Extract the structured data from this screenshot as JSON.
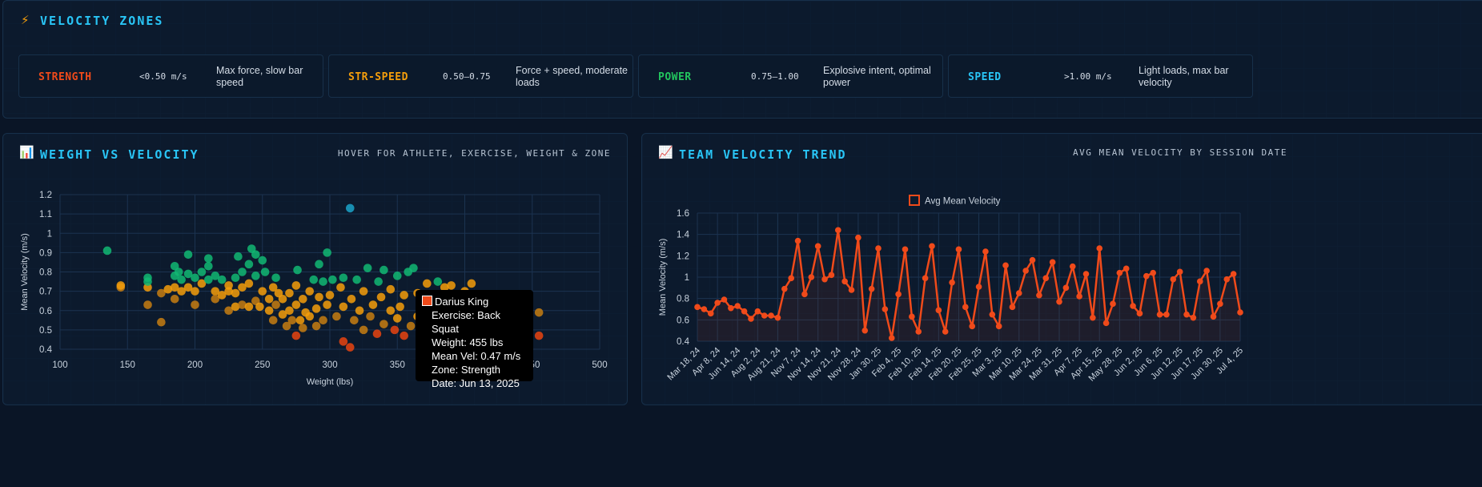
{
  "zones_panel": {
    "title": "VELOCITY ZONES",
    "icon": "lightning-icon",
    "zones": [
      {
        "name": "STRENGTH",
        "range": "<0.50 m/s",
        "desc": "Max force, slow bar speed",
        "color": "#f04a1a"
      },
      {
        "name": "STR-SPEED",
        "range": "0.50–0.75",
        "desc": "Force + speed, moderate loads",
        "color": "#f59e0b"
      },
      {
        "name": "POWER",
        "range": "0.75–1.00",
        "desc": "Explosive intent, optimal power",
        "color": "#22c55e"
      },
      {
        "name": "SPEED",
        "range": ">1.00 m/s",
        "desc": "Light loads, max bar velocity",
        "color": "#29c5f6"
      }
    ]
  },
  "scatter_panel": {
    "title": "WEIGHT VS VELOCITY",
    "subtitle": "HOVER FOR ATHLETE, EXERCISE, WEIGHT & ZONE",
    "icon": "bar-chart-icon",
    "tooltip": {
      "athlete": "Darius King",
      "exercise": "Exercise: Back Squat",
      "weight": "Weight: 455 lbs",
      "mean_vel": "Mean Vel: 0.47 m/s",
      "zone": "Zone: Strength",
      "date": "Date: Jun 13, 2025",
      "swatch": "#f04a1a"
    }
  },
  "trend_panel": {
    "title": "TEAM VELOCITY TREND",
    "subtitle": "AVG MEAN VELOCITY BY SESSION DATE",
    "icon": "line-chart-icon"
  },
  "chart_data": [
    {
      "type": "scatter",
      "xlabel": "Weight (lbs)",
      "ylabel": "Mean Velocity (m/s)",
      "xlim": [
        100,
        500
      ],
      "ylim": [
        0.4,
        1.2
      ],
      "xticks": [
        100,
        150,
        200,
        250,
        300,
        350,
        400,
        450,
        500
      ],
      "yticks": [
        0.4,
        0.5,
        0.6,
        0.7,
        0.8,
        0.9,
        1.0,
        1.1,
        1.2
      ],
      "grid": true,
      "colors": {
        "speed": "#1ba3c9",
        "power": "#12b873",
        "str_speed": "#f59e0b",
        "strength": "#e94410",
        "dark": "#c77e12"
      },
      "points": [
        [
          135,
          0.91,
          "power"
        ],
        [
          145,
          0.72,
          "dark"
        ],
        [
          145,
          0.73,
          "str_speed"
        ],
        [
          165,
          0.63,
          "dark"
        ],
        [
          165,
          0.72,
          "str_speed"
        ],
        [
          165,
          0.77,
          "power"
        ],
        [
          165,
          0.75,
          "power"
        ],
        [
          175,
          0.54,
          "dark"
        ],
        [
          175,
          0.69,
          "dark"
        ],
        [
          180,
          0.71,
          "str_speed"
        ],
        [
          185,
          0.66,
          "dark"
        ],
        [
          185,
          0.72,
          "str_speed"
        ],
        [
          185,
          0.78,
          "power"
        ],
        [
          185,
          0.83,
          "power"
        ],
        [
          188,
          0.8,
          "power"
        ],
        [
          190,
          0.7,
          "str_speed"
        ],
        [
          190,
          0.76,
          "power"
        ],
        [
          195,
          0.72,
          "str_speed"
        ],
        [
          195,
          0.79,
          "power"
        ],
        [
          195,
          0.89,
          "power"
        ],
        [
          200,
          0.63,
          "dark"
        ],
        [
          200,
          0.7,
          "str_speed"
        ],
        [
          200,
          0.77,
          "power"
        ],
        [
          205,
          0.74,
          "str_speed"
        ],
        [
          205,
          0.8,
          "power"
        ],
        [
          210,
          0.83,
          "power"
        ],
        [
          210,
          0.87,
          "power"
        ],
        [
          210,
          0.76,
          "power"
        ],
        [
          215,
          0.7,
          "str_speed"
        ],
        [
          215,
          0.66,
          "dark"
        ],
        [
          215,
          0.78,
          "power"
        ],
        [
          220,
          0.76,
          "power"
        ],
        [
          220,
          0.68,
          "str_speed"
        ],
        [
          225,
          0.6,
          "dark"
        ],
        [
          225,
          0.7,
          "str_speed"
        ],
        [
          225,
          0.73,
          "str_speed"
        ],
        [
          230,
          0.62,
          "str_speed"
        ],
        [
          230,
          0.69,
          "str_speed"
        ],
        [
          230,
          0.77,
          "power"
        ],
        [
          232,
          0.88,
          "power"
        ],
        [
          235,
          0.63,
          "dark"
        ],
        [
          235,
          0.72,
          "str_speed"
        ],
        [
          235,
          0.8,
          "power"
        ],
        [
          240,
          0.62,
          "str_speed"
        ],
        [
          240,
          0.74,
          "str_speed"
        ],
        [
          240,
          0.84,
          "power"
        ],
        [
          242,
          0.92,
          "power"
        ],
        [
          245,
          0.65,
          "dark"
        ],
        [
          245,
          0.78,
          "power"
        ],
        [
          245,
          0.89,
          "power"
        ],
        [
          248,
          0.62,
          "str_speed"
        ],
        [
          250,
          0.7,
          "str_speed"
        ],
        [
          250,
          0.86,
          "power"
        ],
        [
          252,
          0.8,
          "power"
        ],
        [
          255,
          0.6,
          "str_speed"
        ],
        [
          255,
          0.66,
          "str_speed"
        ],
        [
          258,
          0.55,
          "dark"
        ],
        [
          258,
          0.72,
          "str_speed"
        ],
        [
          260,
          0.63,
          "dark"
        ],
        [
          260,
          0.77,
          "power"
        ],
        [
          262,
          0.69,
          "str_speed"
        ],
        [
          265,
          0.58,
          "str_speed"
        ],
        [
          265,
          0.66,
          "str_speed"
        ],
        [
          268,
          0.52,
          "dark"
        ],
        [
          270,
          0.6,
          "str_speed"
        ],
        [
          270,
          0.69,
          "str_speed"
        ],
        [
          272,
          0.55,
          "dark"
        ],
        [
          275,
          0.47,
          "strength"
        ],
        [
          275,
          0.63,
          "str_speed"
        ],
        [
          275,
          0.73,
          "str_speed"
        ],
        [
          276,
          0.81,
          "power"
        ],
        [
          278,
          0.55,
          "str_speed"
        ],
        [
          280,
          0.66,
          "str_speed"
        ],
        [
          280,
          0.51,
          "dark"
        ],
        [
          282,
          0.59,
          "str_speed"
        ],
        [
          285,
          0.57,
          "str_speed"
        ],
        [
          285,
          0.7,
          "str_speed"
        ],
        [
          288,
          0.76,
          "power"
        ],
        [
          290,
          0.52,
          "dark"
        ],
        [
          290,
          0.61,
          "str_speed"
        ],
        [
          292,
          0.67,
          "str_speed"
        ],
        [
          292,
          0.84,
          "power"
        ],
        [
          295,
          0.55,
          "dark"
        ],
        [
          295,
          0.75,
          "power"
        ],
        [
          298,
          0.63,
          "str_speed"
        ],
        [
          298,
          0.9,
          "power"
        ],
        [
          300,
          0.68,
          "str_speed"
        ],
        [
          302,
          0.76,
          "power"
        ],
        [
          305,
          0.57,
          "dark"
        ],
        [
          308,
          0.72,
          "str_speed"
        ],
        [
          310,
          0.44,
          "strength"
        ],
        [
          310,
          0.62,
          "str_speed"
        ],
        [
          310,
          0.77,
          "power"
        ],
        [
          315,
          0.41,
          "strength"
        ],
        [
          315,
          1.13,
          "speed"
        ],
        [
          316,
          0.66,
          "str_speed"
        ],
        [
          318,
          0.55,
          "dark"
        ],
        [
          320,
          0.76,
          "power"
        ],
        [
          322,
          0.6,
          "str_speed"
        ],
        [
          325,
          0.5,
          "dark"
        ],
        [
          325,
          0.7,
          "str_speed"
        ],
        [
          328,
          0.82,
          "power"
        ],
        [
          330,
          0.57,
          "dark"
        ],
        [
          332,
          0.63,
          "str_speed"
        ],
        [
          335,
          0.48,
          "strength"
        ],
        [
          336,
          0.75,
          "power"
        ],
        [
          338,
          0.67,
          "str_speed"
        ],
        [
          340,
          0.53,
          "dark"
        ],
        [
          340,
          0.81,
          "power"
        ],
        [
          345,
          0.6,
          "str_speed"
        ],
        [
          345,
          0.71,
          "str_speed"
        ],
        [
          348,
          0.5,
          "strength"
        ],
        [
          350,
          0.56,
          "str_speed"
        ],
        [
          350,
          0.78,
          "power"
        ],
        [
          352,
          0.62,
          "str_speed"
        ],
        [
          355,
          0.47,
          "strength"
        ],
        [
          355,
          0.68,
          "str_speed"
        ],
        [
          358,
          0.8,
          "power"
        ],
        [
          360,
          0.52,
          "dark"
        ],
        [
          362,
          0.82,
          "power"
        ],
        [
          365,
          0.57,
          "str_speed"
        ],
        [
          365,
          0.69,
          "str_speed"
        ],
        [
          370,
          0.61,
          "str_speed"
        ],
        [
          372,
          0.74,
          "str_speed"
        ],
        [
          375,
          0.66,
          "str_speed"
        ],
        [
          380,
          0.75,
          "power"
        ],
        [
          385,
          0.72,
          "str_speed"
        ],
        [
          390,
          0.73,
          "str_speed"
        ],
        [
          390,
          0.61,
          "str_speed"
        ],
        [
          400,
          0.7,
          "str_speed"
        ],
        [
          405,
          0.74,
          "str_speed"
        ],
        [
          415,
          0.62,
          "dark"
        ],
        [
          430,
          0.6,
          "dark"
        ],
        [
          435,
          0.53,
          "dark"
        ],
        [
          440,
          0.62,
          "dark"
        ],
        [
          455,
          0.59,
          "dark"
        ],
        [
          455,
          0.47,
          "strength"
        ]
      ]
    },
    {
      "type": "line",
      "legend": [
        "Avg Mean Velocity"
      ],
      "legend_position": "top-center",
      "ylabel": "Mean Velocity (m/s)",
      "ylim": [
        0.4,
        1.6
      ],
      "yticks": [
        0.4,
        0.6,
        0.8,
        1.0,
        1.2,
        1.4,
        1.6
      ],
      "color": "#f04a1a",
      "xticklabels": [
        "Mar 18, 24",
        "Apr 8, 24",
        "Jun 14, 24",
        "Aug 2, 24",
        "Aug 21, 24",
        "Nov 7, 24",
        "Nov 14, 24",
        "Nov 21, 24",
        "Nov 28, 24",
        "Jan 30, 25",
        "Feb 4, 25",
        "Feb 10, 25",
        "Feb 14, 25",
        "Feb 20, 25",
        "Feb 25, 25",
        "Mar 3, 25",
        "Mar 10, 25",
        "Mar 24, 25",
        "Mar 31, 25",
        "Apr 7, 25",
        "Apr 15, 25",
        "May 28, 25",
        "Jun 2, 25",
        "Jun 6, 25",
        "Jun 12, 25",
        "Jun 17, 25",
        "Jun 30, 25",
        "Jul 4, 25"
      ],
      "values": [
        0.72,
        0.7,
        0.66,
        0.76,
        0.79,
        0.71,
        0.73,
        0.68,
        0.61,
        0.68,
        0.64,
        0.64,
        0.62,
        0.89,
        0.99,
        1.34,
        0.84,
        1.0,
        1.29,
        0.98,
        1.02,
        1.44,
        0.96,
        0.88,
        1.37,
        0.5,
        0.89,
        1.27,
        0.7,
        0.43,
        0.84,
        1.26,
        0.63,
        0.49,
        0.99,
        1.29,
        0.69,
        0.49,
        0.95,
        1.26,
        0.72,
        0.54,
        0.91,
        1.24,
        0.65,
        0.54,
        1.11,
        0.72,
        0.85,
        1.06,
        1.16,
        0.83,
        0.99,
        1.14,
        0.77,
        0.9,
        1.1,
        0.82,
        1.03,
        0.62,
        1.27,
        0.57,
        0.75,
        1.04,
        1.08,
        0.73,
        0.66,
        1.01,
        1.04,
        0.65,
        0.65,
        0.98,
        1.05,
        0.65,
        0.62,
        0.96,
        1.06,
        0.63,
        0.75,
        0.98,
        1.03,
        0.67
      ]
    }
  ]
}
